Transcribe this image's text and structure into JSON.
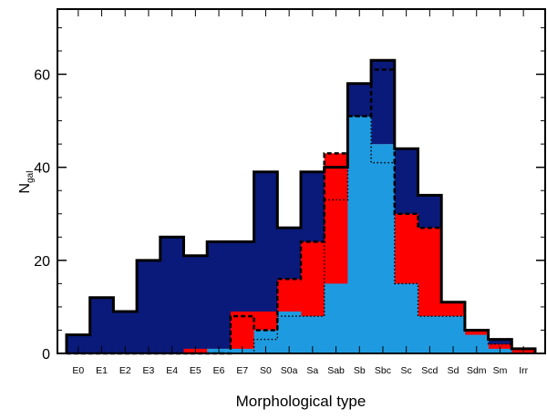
{
  "chart_data": {
    "type": "bar",
    "style": "stacked-step-histogram",
    "xlabel": "Morphological type",
    "ylabel_main": "N",
    "ylabel_sub": "gal",
    "ylim": [
      0,
      74
    ],
    "yticks": [
      0,
      20,
      40,
      60
    ],
    "grid": false,
    "categories": [
      "E0",
      "E1",
      "E2",
      "E3",
      "E4",
      "E5",
      "E6",
      "E7",
      "S0",
      "S0a",
      "Sa",
      "Sab",
      "Sb",
      "Sbc",
      "Sc",
      "Scd",
      "Sd",
      "Sdm",
      "Sm",
      "Irr"
    ],
    "series": [
      {
        "color": "#0a1a7a",
        "values": [
          4,
          12,
          9,
          20,
          25,
          21,
          24,
          24,
          39,
          27,
          39,
          40,
          58,
          63,
          44,
          34,
          11,
          5,
          3,
          1
        ]
      },
      {
        "color": "#ff0000",
        "values": [
          0,
          0,
          0,
          0,
          0,
          1,
          1,
          9,
          9,
          16,
          24,
          43,
          51,
          45,
          30,
          27,
          11,
          5,
          2,
          1
        ]
      },
      {
        "color": "#1e9be0",
        "values": [
          0,
          0,
          0,
          0,
          0,
          0,
          1,
          1,
          5,
          9,
          8,
          15,
          51,
          45,
          15,
          8,
          8,
          4,
          1,
          0
        ]
      }
    ],
    "dashed_step": [
      0,
      0,
      0,
      0,
      0,
      0,
      0,
      8,
      5,
      16,
      24,
      43,
      51,
      61,
      30,
      27,
      11,
      5,
      3,
      1
    ],
    "dotted_step": [
      0,
      0,
      0,
      0,
      0,
      0,
      0,
      0,
      3,
      8,
      8,
      33,
      51,
      41,
      15,
      8,
      8,
      5,
      2,
      0
    ]
  }
}
